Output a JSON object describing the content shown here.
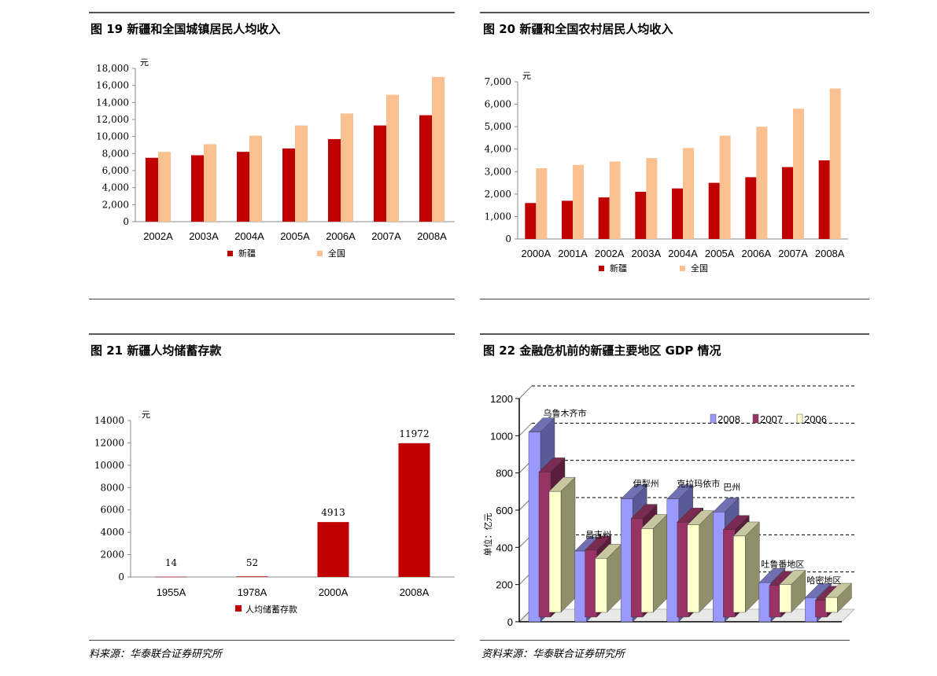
{
  "figures": {
    "fig19": {
      "title": "图 19  新疆和全国城镇居民人均收入"
    },
    "fig20": {
      "title": "图 20   新疆和全国农村居民人均收入"
    },
    "fig21": {
      "title": "图 21  新疆人均储蓄存款"
    },
    "fig22": {
      "title": "图  22  金融危机前的新疆主要地区 GDP 情况"
    }
  },
  "sources": {
    "left": "料来源：华泰联合证券研究所",
    "right": "资料来源：华泰联合证券研究所"
  },
  "colors": {
    "xinjiang": "#c00000",
    "national": "#fac090",
    "s2008": "#9999ff",
    "s2007": "#993366",
    "s2006": "#ffffcc"
  },
  "chart_data": [
    {
      "id": "fig19",
      "type": "bar",
      "unit": "元",
      "categories": [
        "2002A",
        "2003A",
        "2004A",
        "2005A",
        "2006A",
        "2007A",
        "2008A"
      ],
      "series": [
        {
          "name": "新疆",
          "values": [
            7500,
            7800,
            8200,
            8600,
            9700,
            11300,
            12500
          ]
        },
        {
          "name": "全国",
          "values": [
            8200,
            9100,
            10100,
            11300,
            12700,
            14900,
            17000
          ]
        }
      ],
      "ylim": [
        0,
        18000
      ],
      "yticks": [
        "0",
        "2,000",
        "4,000",
        "6,000",
        "8,000",
        "10,000",
        "12,000",
        "14,000",
        "16,000",
        "18,000"
      ],
      "legend": "bottom"
    },
    {
      "id": "fig20",
      "type": "bar",
      "unit": "元",
      "categories": [
        "2000A",
        "2001A",
        "2002A",
        "2003A",
        "2004A",
        "2005A",
        "2006A",
        "2007A",
        "2008A"
      ],
      "series": [
        {
          "name": "新疆",
          "values": [
            1600,
            1700,
            1850,
            2100,
            2250,
            2500,
            2750,
            3200,
            3500
          ]
        },
        {
          "name": "全国",
          "values": [
            3150,
            3300,
            3450,
            3600,
            4050,
            4600,
            5000,
            5800,
            6700
          ]
        }
      ],
      "ylim": [
        0,
        7000
      ],
      "yticks": [
        "0",
        "1,000",
        "2,000",
        "3,000",
        "4,000",
        "5,000",
        "6,000",
        "7,000"
      ],
      "legend": "bottom"
    },
    {
      "id": "fig21",
      "type": "bar",
      "unit": "元",
      "categories": [
        "1955A",
        "1978A",
        "2000A",
        "2008A"
      ],
      "series": [
        {
          "name": "人均储蓄存款",
          "values": [
            14,
            52,
            4913,
            11972
          ],
          "labels": [
            "14",
            "52",
            "4913",
            "11972"
          ]
        }
      ],
      "ylim": [
        0,
        14000
      ],
      "yticks": [
        "0",
        "2000",
        "4000",
        "6000",
        "8000",
        "10000",
        "12000",
        "14000"
      ],
      "legend": "bottom"
    },
    {
      "id": "fig22",
      "type": "bar",
      "ylabel": "单位：亿元",
      "categories": [
        "乌鲁木齐市",
        "昌吉州",
        "伊犁州",
        "克拉玛依市",
        "巴州",
        "吐鲁番地区",
        "哈密地区"
      ],
      "series": [
        {
          "name": "2008",
          "values": [
            1020,
            380,
            660,
            660,
            590,
            210,
            130
          ]
        },
        {
          "name": "2007",
          "values": [
            780,
            360,
            530,
            510,
            470,
            170,
            90
          ]
        },
        {
          "name": "2006",
          "values": [
            650,
            290,
            450,
            470,
            410,
            150,
            80
          ]
        }
      ],
      "ylim": [
        0,
        1200
      ],
      "yticks": [
        "0",
        "200",
        "400",
        "600",
        "800",
        "1000",
        "1200"
      ],
      "legend": "top-right",
      "grid": true
    }
  ]
}
